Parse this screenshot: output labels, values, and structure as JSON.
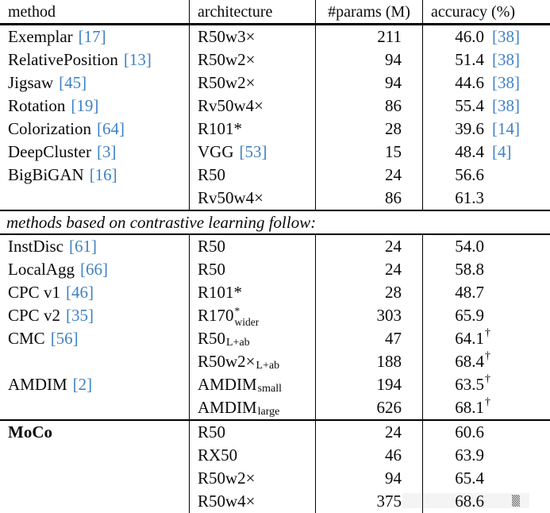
{
  "accent": {
    "citation_color": "#3e82c4",
    "rule_color": "#000000"
  },
  "watermark": {
    "glyph": "▒"
  },
  "table": {
    "columns": [
      {
        "key": "method",
        "label": "method"
      },
      {
        "key": "architecture",
        "label": "architecture"
      },
      {
        "key": "params",
        "label": "#params (M)"
      },
      {
        "key": "accuracy",
        "label": "accuracy (%)"
      }
    ],
    "rows": [
      {
        "type": "data",
        "method": "Exemplar",
        "method_cite": "[17]",
        "arch": "R50w3×",
        "params": "211",
        "acc": "46.0",
        "acc_cite": "[38]"
      },
      {
        "type": "data",
        "method": "RelativePosition",
        "method_cite": "[13]",
        "arch": "R50w2×",
        "params": "94",
        "acc": "51.4",
        "acc_cite": "[38]"
      },
      {
        "type": "data",
        "method": "Jigsaw",
        "method_cite": "[45]",
        "arch": "R50w2×",
        "params": "94",
        "acc": "44.6",
        "acc_cite": "[38]"
      },
      {
        "type": "data",
        "method": "Rotation",
        "method_cite": "[19]",
        "arch": "Rv50w4×",
        "params": "86",
        "acc": "55.4",
        "acc_cite": "[38]"
      },
      {
        "type": "data",
        "method": "Colorization",
        "method_cite": "[64]",
        "arch": "R101*",
        "params": "28",
        "acc": "39.6",
        "acc_cite": "[14]"
      },
      {
        "type": "data",
        "method": "DeepCluster",
        "method_cite": "[3]",
        "arch": "VGG",
        "arch_cite": "[53]",
        "params": "15",
        "acc": "48.4",
        "acc_cite": "[4]"
      },
      {
        "type": "data",
        "method": "BigBiGAN",
        "method_cite": "[16]",
        "arch": "R50",
        "params": "24",
        "acc": "56.6"
      },
      {
        "type": "data",
        "method": "",
        "arch": "Rv50w4×",
        "params": "86",
        "acc": "61.3"
      },
      {
        "type": "section",
        "label": "methods based on contrastive learning follow:"
      },
      {
        "type": "data",
        "method": "InstDisc",
        "method_cite": "[61]",
        "arch": "R50",
        "params": "24",
        "acc": "54.0"
      },
      {
        "type": "data",
        "method": "LocalAgg",
        "method_cite": "[66]",
        "arch": "R50",
        "params": "24",
        "acc": "58.8"
      },
      {
        "type": "data",
        "method": "CPC v1",
        "method_cite": "[46]",
        "arch": "R101*",
        "params": "28",
        "acc": "48.7"
      },
      {
        "type": "data",
        "method": "CPC v2",
        "method_cite": "[35]",
        "arch": "R170",
        "arch_sup": "*",
        "arch_sub": "wider",
        "params": "303",
        "acc": "65.9"
      },
      {
        "type": "data",
        "method": "CMC",
        "method_cite": "[56]",
        "arch": "R50",
        "arch_sub": "L+ab",
        "params": "47",
        "acc": "64.1",
        "acc_dagger": "†"
      },
      {
        "type": "data",
        "method": "",
        "arch": "R50w2×",
        "arch_sub": "L+ab",
        "params": "188",
        "acc": "68.4",
        "acc_dagger": "†"
      },
      {
        "type": "data",
        "method": "AMDIM",
        "method_cite": "[2]",
        "arch": "AMDIM",
        "arch_sub": "small",
        "params": "194",
        "acc": "63.5",
        "acc_dagger": "†"
      },
      {
        "type": "data",
        "method": "",
        "arch": "AMDIM",
        "arch_sub": "large",
        "params": "626",
        "acc": "68.1",
        "acc_dagger": "†"
      },
      {
        "type": "data",
        "method": "MoCo",
        "method_bold": true,
        "rule_above": true,
        "arch": "R50",
        "params": "24",
        "acc": "60.6"
      },
      {
        "type": "data",
        "method": "",
        "arch": "RX50",
        "params": "46",
        "acc": "63.9"
      },
      {
        "type": "data",
        "method": "",
        "arch": "R50w2×",
        "params": "94",
        "acc": "65.4"
      },
      {
        "type": "data",
        "method": "",
        "arch": "R50w4×",
        "params": "375",
        "acc": "68.6",
        "watermark": true
      }
    ]
  }
}
